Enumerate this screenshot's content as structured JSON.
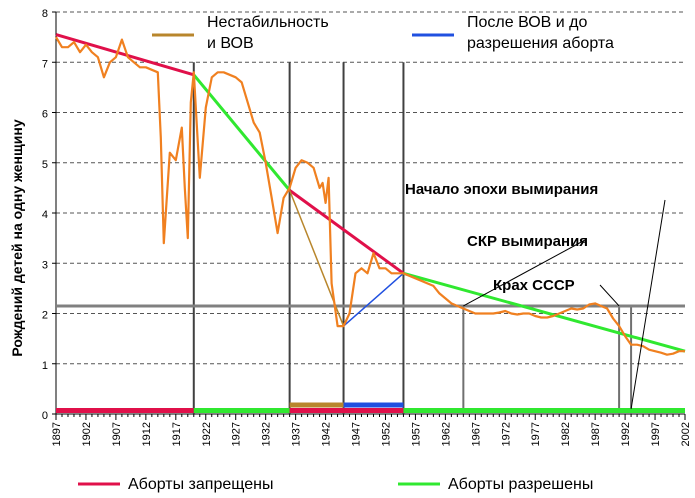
{
  "chart_data": {
    "type": "line",
    "ylabel": "Рождений детей на одну женщину",
    "xlim": [
      1897,
      2002
    ],
    "ylim": [
      0,
      8
    ],
    "y_ticks": [
      0,
      1,
      2,
      3,
      4,
      5,
      6,
      7,
      8
    ],
    "x_ticks": [
      1897,
      1902,
      1907,
      1912,
      1917,
      1922,
      1927,
      1932,
      1937,
      1942,
      1947,
      1952,
      1957,
      1962,
      1967,
      1972,
      1977,
      1982,
      1987,
      1992,
      1997,
      2002
    ],
    "grid": true,
    "colors": {
      "tfr": "#f08020",
      "banned": "#e0104a",
      "allowed": "#30e830",
      "war": "#b8862c",
      "postwar": "#2050e0",
      "grid": "#404040",
      "dying_threshold": "#808080"
    },
    "tfr_series": {
      "x": [
        1897,
        1898,
        1899,
        1900,
        1901,
        1902,
        1903,
        1904,
        1905,
        1906,
        1907,
        1908,
        1909,
        1910,
        1911,
        1912,
        1913,
        1914,
        1914.5,
        1915,
        1916,
        1917,
        1918,
        1918.5,
        1919,
        1919.5,
        1920,
        1921,
        1922,
        1923,
        1924,
        1925,
        1926,
        1927,
        1928,
        1929,
        1930,
        1931,
        1932,
        1933,
        1934,
        1935,
        1936,
        1937,
        1938,
        1939,
        1940,
        1941,
        1941.5,
        1942,
        1942.5,
        1943,
        1944,
        1945,
        1946,
        1947,
        1948,
        1949,
        1950,
        1951,
        1952,
        1953,
        1954,
        1955,
        1956,
        1957,
        1958,
        1959,
        1960,
        1961,
        1962,
        1963,
        1964,
        1965,
        1966,
        1967,
        1968,
        1969,
        1970,
        1971,
        1972,
        1973,
        1974,
        1975,
        1976,
        1977,
        1978,
        1979,
        1980,
        1981,
        1982,
        1983,
        1984,
        1985,
        1986,
        1987,
        1988,
        1989,
        1990,
        1991,
        1992,
        1993,
        1994,
        1995,
        1996,
        1997,
        1998,
        1999,
        2000,
        2001,
        2002
      ],
      "y": [
        7.5,
        7.3,
        7.3,
        7.4,
        7.2,
        7.35,
        7.2,
        7.1,
        6.7,
        7.0,
        7.1,
        7.45,
        7.1,
        7.0,
        6.9,
        6.9,
        6.85,
        6.8,
        5.5,
        3.4,
        5.2,
        5.05,
        5.7,
        4.5,
        3.5,
        6.2,
        6.8,
        4.7,
        6.1,
        6.7,
        6.8,
        6.8,
        6.75,
        6.7,
        6.6,
        6.2,
        5.8,
        5.6,
        5.0,
        4.3,
        3.6,
        4.3,
        4.5,
        4.9,
        5.05,
        5.0,
        4.9,
        4.5,
        4.6,
        4.2,
        4.7,
        2.6,
        1.75,
        1.75,
        2.0,
        2.8,
        2.9,
        2.8,
        3.2,
        2.9,
        2.9,
        2.8,
        2.8,
        2.8,
        2.75,
        2.7,
        2.65,
        2.6,
        2.55,
        2.4,
        2.3,
        2.2,
        2.15,
        2.1,
        2.05,
        2.0,
        2.0,
        2.0,
        2.0,
        2.02,
        2.05,
        2.0,
        1.98,
        2.0,
        2.0,
        1.95,
        1.92,
        1.92,
        1.95,
        2.0,
        2.05,
        2.1,
        2.08,
        2.1,
        2.18,
        2.2,
        2.15,
        2.1,
        1.9,
        1.75,
        1.55,
        1.38,
        1.38,
        1.35,
        1.28,
        1.25,
        1.22,
        1.18,
        1.2,
        1.25,
        1.25
      ]
    },
    "trend_lines": [
      {
        "from": [
          1897,
          7.55
        ],
        "to": [
          1920,
          6.75
        ],
        "color": "banned"
      },
      {
        "from": [
          1920,
          6.75
        ],
        "to": [
          1936,
          4.45
        ],
        "color": "allowed"
      },
      {
        "from": [
          1936,
          4.45
        ],
        "to": [
          1955,
          2.8
        ],
        "color": "banned"
      },
      {
        "from": [
          1955,
          2.8
        ],
        "to": [
          2002,
          1.25
        ],
        "color": "allowed"
      },
      {
        "from": [
          1936,
          4.45
        ],
        "to": [
          1945,
          1.75
        ],
        "color": "war"
      },
      {
        "from": [
          1945,
          1.75
        ],
        "to": [
          1955,
          2.8
        ],
        "color": "postwar"
      }
    ],
    "vertical_markers": [
      1920,
      1936,
      1945,
      1955
    ],
    "annotation_markers": [
      1965,
      1991,
      1993
    ],
    "dying_threshold": 2.15,
    "period_bars": [
      {
        "from": 1897,
        "to": 1920,
        "color": "banned",
        "y": 0.07
      },
      {
        "from": 1920,
        "to": 1936,
        "color": "allowed",
        "y": 0.07
      },
      {
        "from": 1936,
        "to": 1955,
        "color": "banned",
        "y": 0.07
      },
      {
        "from": 1955,
        "to": 2002,
        "color": "allowed",
        "y": 0.07
      },
      {
        "from": 1936,
        "to": 1945,
        "color": "war",
        "y": 0.18
      },
      {
        "from": 1945,
        "to": 1955,
        "color": "postwar",
        "y": 0.18
      }
    ],
    "legend_top": [
      {
        "lines": [
          "Нестабильность",
          "и ВОВ"
        ],
        "color": "war"
      },
      {
        "lines": [
          "После ВОВ и до",
          "разрешения аборта"
        ],
        "color": "postwar"
      }
    ],
    "legend_bottom": [
      {
        "label": "Аборты запрещены",
        "color": "banned"
      },
      {
        "label": "Аборты разрешены",
        "color": "allowed"
      }
    ],
    "annotations": [
      {
        "text": "Начало эпохи вымирания",
        "marker": 1993
      },
      {
        "text": "СКР вымирания",
        "marker": 1965
      },
      {
        "text": "Крах СССР",
        "marker": 1991
      }
    ]
  }
}
